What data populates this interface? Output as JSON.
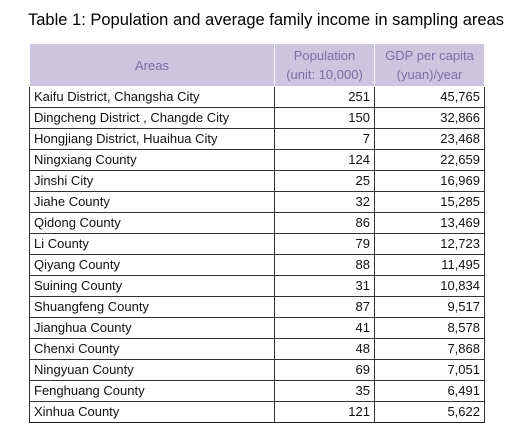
{
  "caption": "Table 1: Population and average family income in sampling areas",
  "columns": {
    "area": "Areas",
    "population": [
      "Population",
      "(unit: 10,000)"
    ],
    "gdp": [
      "GDP per capita",
      "(yuan)/year"
    ]
  },
  "rows": [
    {
      "area": "Kaifu District, Changsha City",
      "population": "251",
      "gdp": "45,765"
    },
    {
      "area": "Dingcheng District , Changde City",
      "population": "150",
      "gdp": "32,866"
    },
    {
      "area": "Hongjiang District, Huaihua  City",
      "population": "7",
      "gdp": "23,468"
    },
    {
      "area": "Ningxiang County",
      "population": "124",
      "gdp": "22,659"
    },
    {
      "area": "Jinshi City",
      "population": "25",
      "gdp": "16,969"
    },
    {
      "area": "Jiahe County",
      "population": "32",
      "gdp": "15,285"
    },
    {
      "area": "Qidong County",
      "population": "86",
      "gdp": "13,469"
    },
    {
      "area": "Li County",
      "population": "79",
      "gdp": "12,723"
    },
    {
      "area": "Qiyang County",
      "population": "88",
      "gdp": "11,495"
    },
    {
      "area": "Suining County",
      "population": "31",
      "gdp": "10,834"
    },
    {
      "area": "Shuangfeng County",
      "population": "87",
      "gdp": "9,517"
    },
    {
      "area": "Jianghua County",
      "population": "41",
      "gdp": "8,578"
    },
    {
      "area": "Chenxi County",
      "population": "48",
      "gdp": "7,868"
    },
    {
      "area": "Ningyuan County",
      "population": "69",
      "gdp": "7,051"
    },
    {
      "area": "Fenghuang County",
      "population": "35",
      "gdp": "6,491"
    },
    {
      "area": "Xinhua County",
      "population": "121",
      "gdp": "5,622"
    }
  ],
  "colors": {
    "header_background": "#cdc4e0",
    "header_text": "#7b6fa3",
    "grid": "#333333"
  }
}
